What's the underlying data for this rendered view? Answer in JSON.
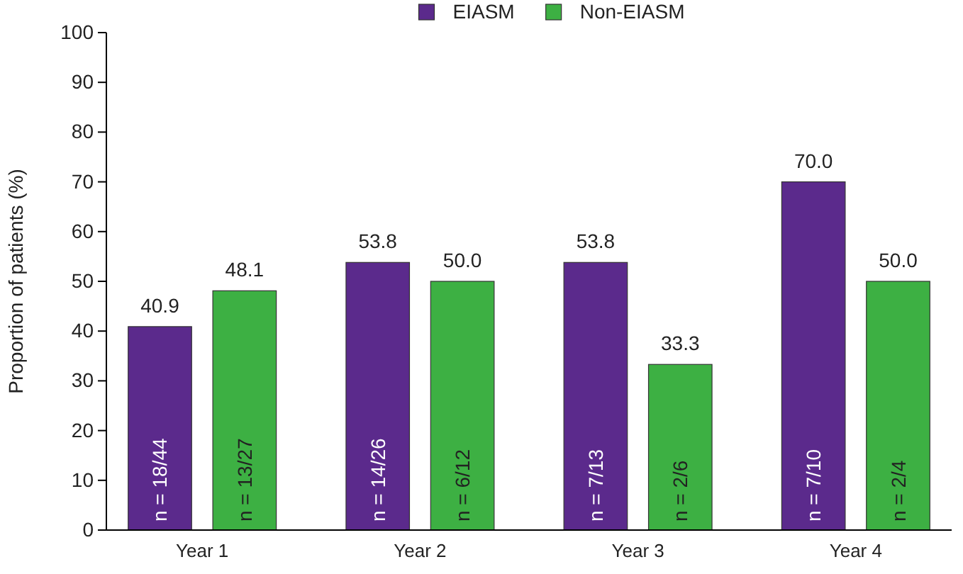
{
  "chart_data": {
    "type": "bar",
    "ylabel": "Proportion of patients (%)",
    "categories": [
      "Year 1",
      "Year 2",
      "Year 3",
      "Year 4"
    ],
    "series": [
      {
        "name": "EIASM",
        "color": "#5b2a8c",
        "values": [
          40.9,
          53.8,
          53.8,
          70.0
        ],
        "value_labels": [
          "40.9",
          "53.8",
          "53.8",
          "70.0"
        ]
      },
      {
        "name": "Non-EIASM",
        "color": "#3db043",
        "values": [
          48.1,
          50.0,
          33.3,
          50.0
        ],
        "value_labels": [
          "48.1",
          "50.0",
          "33.3",
          "50.0"
        ]
      }
    ],
    "ylim": [
      0,
      100
    ],
    "yticks": [
      0,
      10,
      20,
      30,
      40,
      50,
      60,
      70,
      80,
      90,
      100
    ],
    "grid": false,
    "legend": "top",
    "annotations": [
      "n = 18/44",
      "n = 13/27",
      "n = 14/26",
      "n = 6/12",
      "n = 7/13",
      "n = 2/6",
      "n = 7/10",
      "n = 2/4"
    ]
  }
}
